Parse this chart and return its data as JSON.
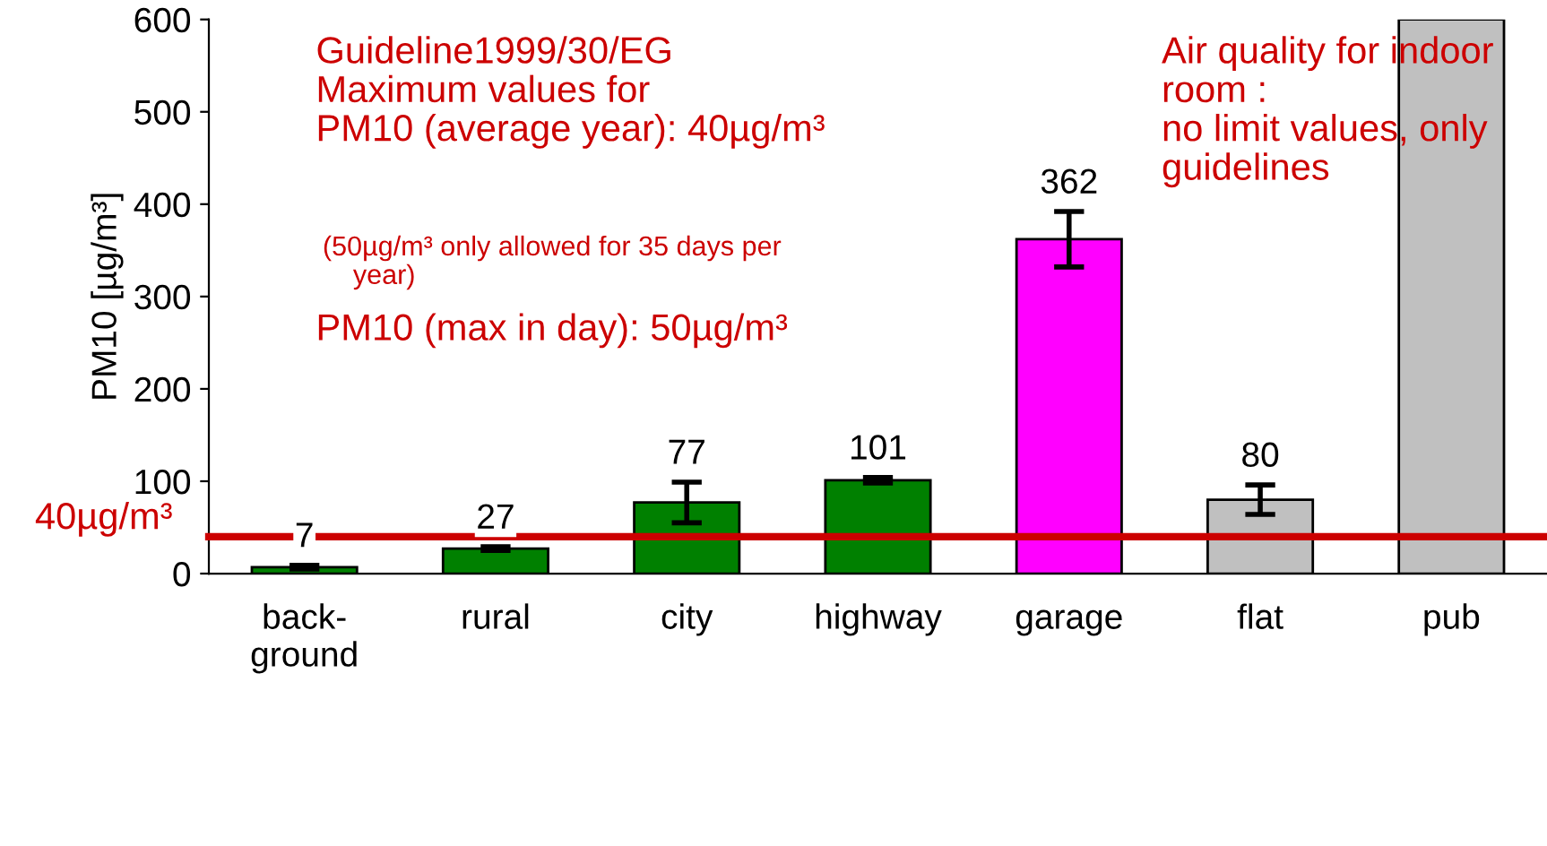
{
  "chart_data": {
    "type": "bar",
    "ylabel": "PM10 [µg/m³]",
    "categories": [
      "back-\nground",
      "rural",
      "city",
      "highway",
      "garage",
      "flat",
      "pub"
    ],
    "values": [
      7,
      27,
      77,
      101,
      362,
      80,
      600
    ],
    "colors": [
      "#008000",
      "#008000",
      "#008000",
      "#008000",
      "#ff00ff",
      "#c0c0c0",
      "#c0c0c0"
    ],
    "errors": [
      2,
      2,
      22,
      3,
      30,
      16,
      null
    ],
    "value_labels": [
      "7",
      "27",
      "77",
      "101",
      "362",
      "80",
      null
    ],
    "ylim": [
      0,
      600
    ],
    "yticks": [
      0,
      100,
      200,
      300,
      400,
      500,
      600
    ],
    "grid": false,
    "legend": false,
    "ref_lines": [
      {
        "axis": "y",
        "value": 40,
        "label": "40µg/m³",
        "color": "#cc0000"
      }
    ],
    "annotations": [
      "Guideline1999/30/EG\nMaximum values for\nPM10 (average year): 40µg/m³",
      "(50µg/m³ only allowed for 35 days per\n    year)",
      "PM10 (max in day): 50µg/m³",
      "Air quality for indoor\nroom :\nno limit values, only\nguidelines"
    ]
  }
}
